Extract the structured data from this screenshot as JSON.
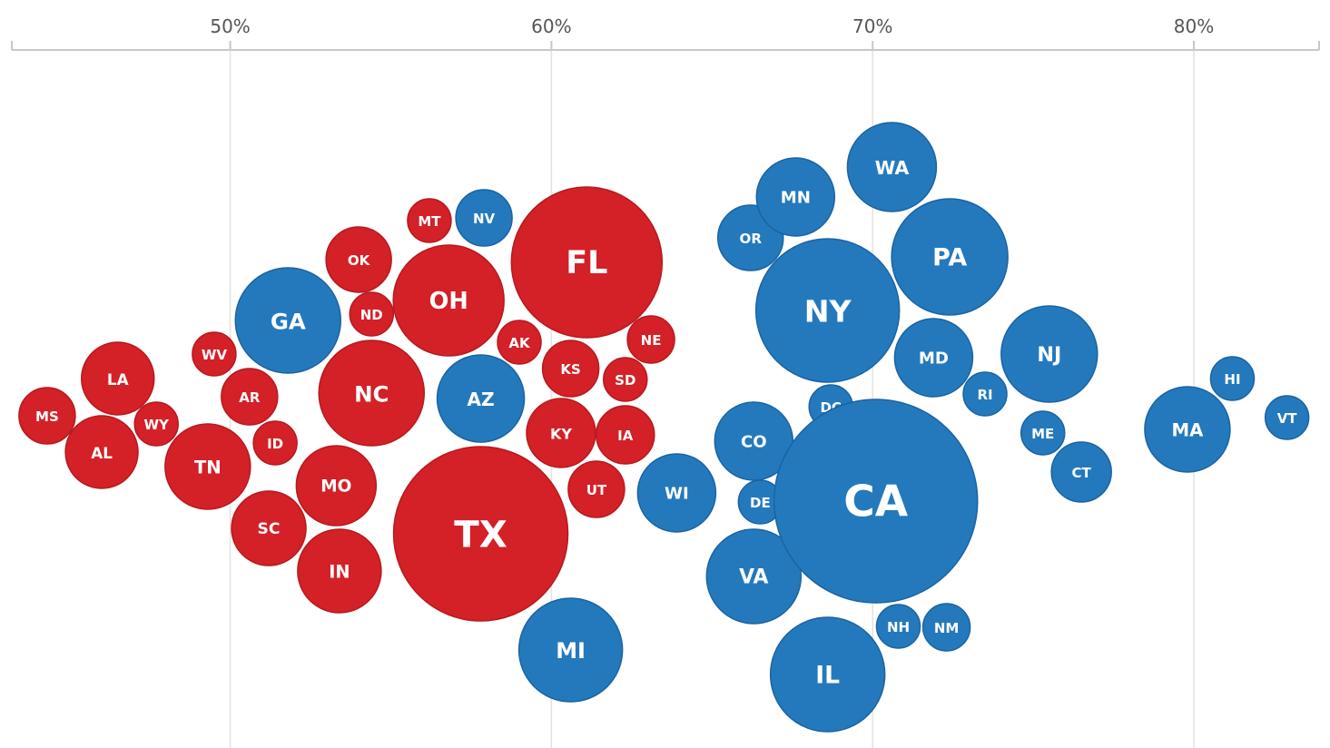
{
  "colors": {
    "red": "#d42027",
    "blue": "#2479bd",
    "red_stroke": "#b51a20",
    "blue_stroke": "#1b63a1",
    "axis": "#c8c8c8",
    "grid": "#e2e2e2"
  },
  "chart_data": {
    "type": "scatter",
    "title": "",
    "xlabel": "",
    "ylabel": "",
    "xlim": [
      43.2,
      83.9
    ],
    "grid": "vertical",
    "ticks": [
      {
        "value": 50,
        "label": "50%"
      },
      {
        "value": 60,
        "label": "60%"
      },
      {
        "value": 70,
        "label": "70%"
      },
      {
        "value": 80,
        "label": "80%"
      }
    ],
    "points": [
      {
        "state": "MS",
        "x": 44.3,
        "size": 31,
        "party": "red"
      },
      {
        "state": "AL",
        "x": 46.0,
        "size": 40,
        "party": "red"
      },
      {
        "state": "LA",
        "x": 46.5,
        "size": 40,
        "party": "red"
      },
      {
        "state": "WY",
        "x": 47.7,
        "size": 24,
        "party": "red"
      },
      {
        "state": "TN",
        "x": 49.3,
        "size": 47,
        "party": "red"
      },
      {
        "state": "WV",
        "x": 49.5,
        "size": 24,
        "party": "red"
      },
      {
        "state": "AR",
        "x": 50.6,
        "size": 31,
        "party": "red"
      },
      {
        "state": "ID",
        "x": 51.4,
        "size": 24,
        "party": "red"
      },
      {
        "state": "GA",
        "x": 51.8,
        "size": 58,
        "party": "blue"
      },
      {
        "state": "SC",
        "x": 51.2,
        "size": 41,
        "party": "red"
      },
      {
        "state": "MO",
        "x": 53.3,
        "size": 44,
        "party": "red"
      },
      {
        "state": "IN",
        "x": 53.4,
        "size": 46,
        "party": "red"
      },
      {
        "state": "OK",
        "x": 54.0,
        "size": 36,
        "party": "red"
      },
      {
        "state": "ND",
        "x": 54.4,
        "size": 24,
        "party": "red"
      },
      {
        "state": "NC",
        "x": 54.4,
        "size": 58,
        "party": "red"
      },
      {
        "state": "OH",
        "x": 56.8,
        "size": 61,
        "party": "red"
      },
      {
        "state": "MT",
        "x": 56.2,
        "size": 24,
        "party": "red"
      },
      {
        "state": "NV",
        "x": 57.9,
        "size": 31,
        "party": "blue"
      },
      {
        "state": "AZ",
        "x": 57.8,
        "size": 48,
        "party": "blue"
      },
      {
        "state": "TX",
        "x": 57.8,
        "size": 96,
        "party": "red"
      },
      {
        "state": "AK",
        "x": 59.0,
        "size": 24,
        "party": "red"
      },
      {
        "state": "KY",
        "x": 60.3,
        "size": 38,
        "party": "red"
      },
      {
        "state": "KS",
        "x": 60.6,
        "size": 31,
        "party": "red"
      },
      {
        "state": "FL",
        "x": 61.1,
        "size": 83,
        "party": "red"
      },
      {
        "state": "UT",
        "x": 61.4,
        "size": 31,
        "party": "red"
      },
      {
        "state": "MI",
        "x": 60.6,
        "size": 57,
        "party": "blue"
      },
      {
        "state": "IA",
        "x": 62.3,
        "size": 32,
        "party": "red"
      },
      {
        "state": "SD",
        "x": 62.3,
        "size": 24,
        "party": "red"
      },
      {
        "state": "NE",
        "x": 63.1,
        "size": 26,
        "party": "red"
      },
      {
        "state": "WI",
        "x": 63.9,
        "size": 43,
        "party": "blue"
      },
      {
        "state": "OR",
        "x": 66.2,
        "size": 36,
        "party": "blue"
      },
      {
        "state": "CO",
        "x": 66.3,
        "size": 43,
        "party": "blue"
      },
      {
        "state": "DE",
        "x": 66.5,
        "size": 24,
        "party": "blue"
      },
      {
        "state": "VA",
        "x": 66.3,
        "size": 52,
        "party": "blue"
      },
      {
        "state": "MN",
        "x": 67.6,
        "size": 43,
        "party": "blue"
      },
      {
        "state": "NY",
        "x": 68.6,
        "size": 79,
        "party": "blue"
      },
      {
        "state": "IL",
        "x": 68.6,
        "size": 63,
        "party": "blue"
      },
      {
        "state": "DC",
        "x": 68.7,
        "size": 24,
        "party": "blue"
      },
      {
        "state": "WA",
        "x": 70.6,
        "size": 49,
        "party": "blue"
      },
      {
        "state": "CA",
        "x": 70.1,
        "size": 112,
        "party": "blue"
      },
      {
        "state": "NH",
        "x": 70.8,
        "size": 24,
        "party": "blue"
      },
      {
        "state": "MD",
        "x": 71.9,
        "size": 43,
        "party": "blue"
      },
      {
        "state": "NM",
        "x": 72.3,
        "size": 26,
        "party": "blue"
      },
      {
        "state": "PA",
        "x": 72.4,
        "size": 64,
        "party": "blue"
      },
      {
        "state": "RI",
        "x": 73.5,
        "size": 24,
        "party": "blue"
      },
      {
        "state": "NJ",
        "x": 75.5,
        "size": 53,
        "party": "blue"
      },
      {
        "state": "ME",
        "x": 75.3,
        "size": 24,
        "party": "blue"
      },
      {
        "state": "CT",
        "x": 76.5,
        "size": 33,
        "party": "blue"
      },
      {
        "state": "MA",
        "x": 79.8,
        "size": 47,
        "party": "blue"
      },
      {
        "state": "HI",
        "x": 81.2,
        "size": 24,
        "party": "blue"
      },
      {
        "state": "VT",
        "x": 82.9,
        "size": 24,
        "party": "blue"
      }
    ]
  }
}
